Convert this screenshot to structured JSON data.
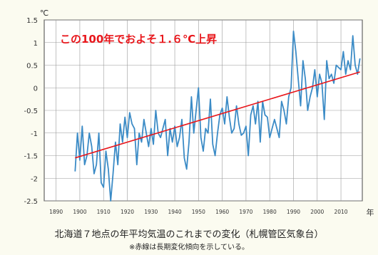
{
  "chart_data": {
    "type": "line",
    "title": "",
    "ylabel": "℃",
    "xlabel": "年",
    "xlim": [
      1885,
      2019
    ],
    "ylim": [
      -2.5,
      1.5
    ],
    "y_ticks": [
      "1.5",
      "1",
      "0.5",
      "0",
      "-0.5",
      "-1",
      "-1.5",
      "-2",
      "-2.5"
    ],
    "x_ticks": [
      "1890",
      "1900",
      "1910",
      "1920",
      "1930",
      "1940",
      "1950",
      "1960",
      "1970",
      "1980",
      "1990",
      "2000",
      "2010"
    ],
    "grid": true,
    "annotation": "この100年でおよそ１.６℃上昇",
    "series": [
      {
        "color": "#3b8bc6",
        "x": [
          1898,
          1899,
          1900,
          1901,
          1902,
          1903,
          1904,
          1905,
          1906,
          1907,
          1908,
          1909,
          1910,
          1911,
          1912,
          1913,
          1914,
          1915,
          1916,
          1917,
          1918,
          1919,
          1920,
          1921,
          1922,
          1923,
          1924,
          1925,
          1926,
          1927,
          1928,
          1929,
          1930,
          1931,
          1932,
          1933,
          1934,
          1935,
          1936,
          1937,
          1938,
          1939,
          1940,
          1941,
          1942,
          1943,
          1944,
          1945,
          1946,
          1947,
          1948,
          1949,
          1950,
          1951,
          1952,
          1953,
          1954,
          1955,
          1956,
          1957,
          1958,
          1959,
          1960,
          1961,
          1962,
          1963,
          1964,
          1965,
          1966,
          1967,
          1968,
          1969,
          1970,
          1971,
          1972,
          1973,
          1974,
          1975,
          1976,
          1977,
          1978,
          1979,
          1980,
          1981,
          1982,
          1983,
          1984,
          1985,
          1986,
          1987,
          1988,
          1989,
          1990,
          1991,
          1992,
          1993,
          1994,
          1995,
          1996,
          1997,
          1998,
          1999,
          2000,
          2001,
          2002,
          2003,
          2004,
          2005,
          2006,
          2007,
          2008,
          2009,
          2010,
          2011,
          2012,
          2013,
          2014,
          2015,
          2016,
          2017,
          2018
        ],
        "values": [
          -1.85,
          -1.0,
          -1.6,
          -0.85,
          -1.7,
          -1.5,
          -1.0,
          -1.3,
          -1.9,
          -1.7,
          -1.0,
          -2.1,
          -2.2,
          -1.4,
          -1.8,
          -2.5,
          -1.9,
          -1.2,
          -1.7,
          -0.8,
          -1.2,
          -0.65,
          -1.1,
          -0.55,
          -0.8,
          -0.9,
          -1.7,
          -1.0,
          -1.2,
          -0.7,
          -1.0,
          -1.3,
          -0.9,
          -1.25,
          -0.5,
          -1.0,
          -1.1,
          -0.9,
          -0.7,
          -1.5,
          -0.9,
          -1.2,
          -0.85,
          -1.3,
          -1.1,
          -0.7,
          -1.55,
          -1.8,
          -1.2,
          -0.2,
          -1.0,
          -0.5,
          0.0,
          -1.1,
          -1.4,
          -0.9,
          -1.0,
          -0.25,
          -1.25,
          -1.5,
          -1.0,
          -0.6,
          -0.45,
          -0.8,
          -0.2,
          -0.65,
          -1.0,
          -0.9,
          -0.4,
          -0.8,
          -1.05,
          -1.0,
          -0.85,
          -1.5,
          -0.6,
          -0.4,
          -0.8,
          -0.3,
          -1.2,
          -0.3,
          -0.6,
          -0.65,
          -1.1,
          -0.9,
          -0.7,
          -0.9,
          -1.1,
          -0.3,
          -0.5,
          -0.8,
          -0.2,
          0.0,
          1.25,
          0.8,
          0.2,
          -0.4,
          0.6,
          0.2,
          -0.5,
          -0.2,
          0.0,
          0.4,
          -0.2,
          0.3,
          0.1,
          -0.7,
          0.6,
          0.2,
          0.3,
          0.1,
          0.5,
          0.45,
          0.4,
          0.8,
          0.3,
          0.6,
          0.4,
          1.15,
          0.5,
          0.3,
          0.65
        ]
      },
      {
        "color": "#e8161b",
        "x": [
          1898,
          2018
        ],
        "values": [
          -1.55,
          0.35
        ]
      }
    ]
  },
  "captions": {
    "main": "北海道７地点の年平均気温のこれまでの変化（札幌管区気象台）",
    "note": "※赤線は長期変化傾向を示している。"
  }
}
